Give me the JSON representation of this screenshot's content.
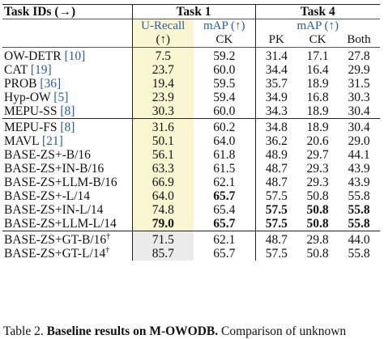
{
  "header": {
    "task_ids_label": "Task IDs (→)",
    "task1_label": "Task 1",
    "task4_label": "Task 4"
  },
  "subheader": {
    "urecall_line1": "U-Recall",
    "urecall_line2": "(↑)",
    "map1_line1": "mAP (↑)",
    "map1_line2": "CK",
    "map4_line1": "mAP (↑)",
    "pk": "PK",
    "ck": "CK",
    "both": "Both"
  },
  "groups": [
    {
      "rows": [
        {
          "name": "OW-DETR",
          "ref": "[10]",
          "sup": "",
          "urecall": "7.5",
          "ck1": "59.2",
          "pk": "31.4",
          "ck4": "17.1",
          "both": "27.8",
          "bold": []
        },
        {
          "name": "CAT",
          "ref": "[19]",
          "sup": "",
          "urecall": "23.7",
          "ck1": "60.0",
          "pk": "34.4",
          "ck4": "16.4",
          "both": "29.9",
          "bold": []
        },
        {
          "name": "PROB",
          "ref": "[36]",
          "sup": "",
          "urecall": "19.4",
          "ck1": "59.5",
          "pk": "35.7",
          "ck4": "18.9",
          "both": "31.5",
          "bold": []
        },
        {
          "name": "Hyp-OW",
          "ref": "[5]",
          "sup": "",
          "urecall": "23.9",
          "ck1": "59.4",
          "pk": "34.9",
          "ck4": "16.8",
          "both": "30.3",
          "bold": []
        },
        {
          "name": "MEPU-SS",
          "ref": "[8]",
          "sup": "",
          "urecall": "30.3",
          "ck1": "60.0",
          "pk": "34.3",
          "ck4": "18.9",
          "both": "30.4",
          "bold": []
        }
      ]
    },
    {
      "rows": [
        {
          "name": "MEPU-FS",
          "ref": "[8]",
          "sup": "",
          "urecall": "31.6",
          "ck1": "60.2",
          "pk": "34.8",
          "ck4": "18.9",
          "both": "30.4",
          "bold": []
        },
        {
          "name": "MAVL",
          "ref": "[21]",
          "sup": "",
          "urecall": "50.1",
          "ck1": "64.0",
          "pk": "36.2",
          "ck4": "20.6",
          "both": "29.0",
          "bold": []
        },
        {
          "name": "BASE-ZS+-B/16",
          "ref": "",
          "sup": "",
          "urecall": "56.1",
          "ck1": "61.8",
          "pk": "48.9",
          "ck4": "29.7",
          "both": "44.1",
          "bold": []
        },
        {
          "name": "BASE-ZS+IN-B/16",
          "ref": "",
          "sup": "",
          "urecall": "63.3",
          "ck1": "61.5",
          "pk": "48.7",
          "ck4": "29.3",
          "both": "43.9",
          "bold": []
        },
        {
          "name": "BASE-ZS+LLM-B/16",
          "ref": "",
          "sup": "",
          "urecall": "66.9",
          "ck1": "62.1",
          "pk": "48.7",
          "ck4": "29.3",
          "both": "43.9",
          "bold": []
        },
        {
          "name": "BASE-ZS+-L/14",
          "ref": "",
          "sup": "",
          "urecall": "64.0",
          "ck1": "65.7",
          "pk": "57.5",
          "ck4": "50.8",
          "both": "55.8",
          "bold": [
            "ck1"
          ]
        },
        {
          "name": "BASE-ZS+IN-L/14",
          "ref": "",
          "sup": "",
          "urecall": "74.8",
          "ck1": "65.4",
          "pk": "57.5",
          "ck4": "50.8",
          "both": "55.8",
          "bold": [
            "pk",
            "ck4",
            "both"
          ]
        },
        {
          "name": "BASE-ZS+LLM-L/14",
          "ref": "",
          "sup": "",
          "urecall": "79.0",
          "ck1": "65.7",
          "pk": "57.5",
          "ck4": "50.8",
          "both": "55.8",
          "bold": [
            "urecall",
            "ck1",
            "pk",
            "ck4",
            "both"
          ]
        }
      ]
    },
    {
      "rows": [
        {
          "name": "BASE-ZS+GT-B/16",
          "ref": "",
          "sup": "†",
          "urecall": "71.5",
          "ck1": "62.1",
          "pk": "48.7",
          "ck4": "29.8",
          "both": "44.0",
          "bold": []
        },
        {
          "name": "BASE-ZS+GT-L/14",
          "ref": "",
          "sup": "†",
          "urecall": "85.7",
          "ck1": "65.7",
          "pk": "57.5",
          "ck4": "50.8",
          "both": "55.8",
          "bold": []
        }
      ]
    }
  ],
  "caption": {
    "label": "Table 2.",
    "bold_text": "Baseline results on M-OWODB.",
    "text": " Comparison of unknown"
  },
  "colors": {
    "urecall_highlight": "#fbf6d2",
    "gt_highlight": "#ebebeb",
    "reference_blue": "#2b5aa8"
  }
}
